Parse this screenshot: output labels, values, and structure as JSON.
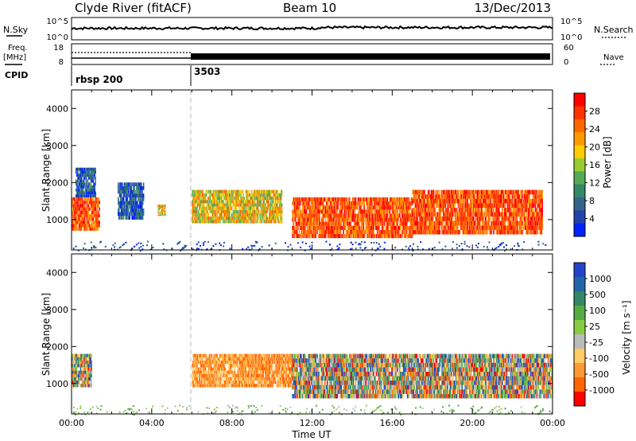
{
  "header": {
    "station": "Clyde River (fitACF)",
    "beam": "Beam 10",
    "date": "13/Dec/2013"
  },
  "noise_panel": {
    "left_label": "N.Sky",
    "right_label": "N.Search",
    "left_ticks": [
      "10^5",
      "10^0"
    ],
    "right_ticks": [
      "10^5",
      "10^0"
    ]
  },
  "freq_panel": {
    "left_label_1": "Freq.",
    "left_label_2": "[MHz]",
    "right_label": "Nave",
    "left_ticks": [
      "18",
      "8"
    ],
    "right_ticks": [
      "60",
      "0"
    ]
  },
  "cpid_panel": {
    "label": "CPID",
    "modes": [
      {
        "name": "rbsp 200",
        "start_hour": 0
      },
      {
        "name": "3503",
        "start_hour": 6
      }
    ]
  },
  "chart_data": [
    {
      "type": "heatmap",
      "parameter": "power",
      "ylabel": "Slant Range [km]",
      "xlabel": "",
      "xlim": [
        0,
        24
      ],
      "ylim": [
        180,
        4500
      ],
      "yticks": [
        "1000",
        "2000",
        "3000",
        "4000"
      ],
      "colorbar": {
        "label": "Power [dB]",
        "ticks": [
          "28",
          "24",
          "20",
          "16",
          "12",
          "8",
          "4"
        ],
        "colors": [
          "#ff0000",
          "#ff3300",
          "#ff6600",
          "#ff9900",
          "#ffcc00",
          "#99cc33",
          "#55aa55",
          "#338866",
          "#336688",
          "#2244aa",
          "#0022ff"
        ]
      },
      "regions": [
        {
          "t0": 0.0,
          "t1": 1.4,
          "r0": 700,
          "r1": 1600,
          "level": "high"
        },
        {
          "t0": 0.2,
          "t1": 1.2,
          "r0": 1600,
          "r1": 2400,
          "level": "low"
        },
        {
          "t0": 2.3,
          "t1": 3.6,
          "r0": 1000,
          "r1": 2000,
          "level": "low"
        },
        {
          "t0": 4.3,
          "t1": 4.7,
          "r0": 1100,
          "r1": 1400,
          "level": "mid"
        },
        {
          "t0": 6.0,
          "t1": 10.5,
          "r0": 900,
          "r1": 1800,
          "level": "mid"
        },
        {
          "t0": 11.0,
          "t1": 17.0,
          "r0": 500,
          "r1": 1600,
          "level": "high"
        },
        {
          "t0": 17.0,
          "t1": 23.5,
          "r0": 600,
          "r1": 1800,
          "level": "high"
        }
      ]
    },
    {
      "type": "heatmap",
      "parameter": "velocity",
      "ylabel": "Slant Range [km]",
      "xlabel": "Time UT",
      "xlim": [
        0,
        24
      ],
      "ylim": [
        180,
        4500
      ],
      "xticks": [
        "00:00",
        "04:00",
        "08:00",
        "12:00",
        "16:00",
        "20:00",
        "00:00"
      ],
      "yticks": [
        "1000",
        "2000",
        "3000",
        "4000"
      ],
      "colorbar": {
        "label": "Velocity [m s⁻¹]",
        "ticks": [
          "1000",
          "500",
          "100",
          "25",
          "-25",
          "-100",
          "-500",
          "-1000"
        ],
        "colors": [
          "#2244cc",
          "#2266aa",
          "#338866",
          "#55aa44",
          "#88cc44",
          "#bbbbbb",
          "#ffcc66",
          "#ff9933",
          "#ff6600",
          "#ff0000"
        ]
      },
      "regions": [
        {
          "t0": 0.0,
          "t1": 1.0,
          "r0": 900,
          "r1": 1800,
          "level": "mixed"
        },
        {
          "t0": 6.0,
          "t1": 11.0,
          "r0": 900,
          "r1": 1800,
          "level": "away"
        },
        {
          "t0": 11.0,
          "t1": 24.0,
          "r0": 600,
          "r1": 1800,
          "level": "mixed"
        }
      ]
    }
  ]
}
